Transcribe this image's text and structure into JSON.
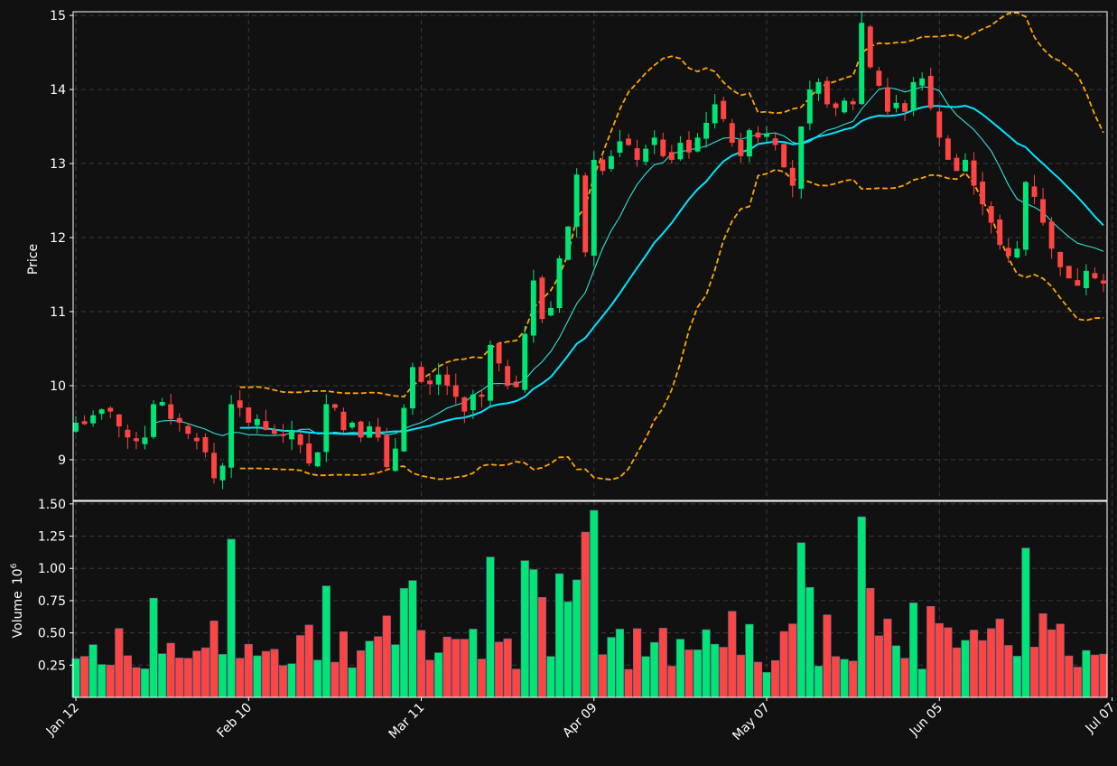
{
  "chart_data": {
    "type": "candlestick",
    "colors": {
      "background": "#111111",
      "up": "#00e676",
      "down": "#ff4444",
      "ma_fast": "#33e0d8",
      "ma_slow": "#00e5ff",
      "bands": "#ffa500",
      "grid": "#3a3a3a",
      "axis": "#ffffff"
    },
    "price_panel": {
      "ylabel": "Price",
      "ylim": [
        8.45,
        15.05
      ],
      "yticks": [
        9,
        10,
        11,
        12,
        13,
        14,
        15
      ]
    },
    "volume_panel": {
      "ylabel": "Volume",
      "unit_exponent": "6",
      "ylim": [
        0,
        1.52
      ],
      "yticks": [
        "0.25",
        "0.50",
        "0.75",
        "1.00",
        "1.25",
        "1.50"
      ]
    },
    "x_ticks": [
      {
        "label": "Jan 12",
        "index": 0
      },
      {
        "label": "Feb 10",
        "index": 20
      },
      {
        "label": "Mar 11",
        "index": 40
      },
      {
        "label": "Apr 09",
        "index": 60
      },
      {
        "label": "May 07",
        "index": 80
      },
      {
        "label": "Jun 05",
        "index": 100
      },
      {
        "label": "Jul 07",
        "index": 120
      }
    ],
    "close": [
      9.5,
      9.48,
      9.6,
      9.68,
      9.65,
      9.45,
      9.3,
      9.25,
      9.3,
      9.75,
      9.78,
      9.55,
      9.5,
      9.35,
      9.25,
      9.1,
      8.75,
      8.92,
      9.75,
      9.7,
      9.5,
      9.55,
      9.4,
      9.35,
      9.32,
      9.4,
      9.2,
      8.95,
      9.1,
      9.75,
      9.7,
      9.4,
      9.5,
      9.3,
      9.45,
      9.3,
      8.9,
      9.15,
      9.7,
      10.25,
      10.05,
      10.02,
      10.15,
      10.0,
      9.85,
      9.65,
      9.88,
      9.85,
      10.55,
      10.3,
      10.0,
      9.98,
      10.7,
      11.42,
      10.9,
      11.05,
      11.72,
      12.15,
      12.85,
      11.8,
      13.05,
      12.9,
      13.1,
      13.3,
      13.25,
      13.05,
      13.2,
      13.35,
      13.1,
      13.05,
      13.28,
      13.15,
      13.35,
      13.55,
      13.8,
      13.6,
      13.28,
      13.1,
      13.45,
      13.35,
      13.4,
      13.25,
      12.95,
      12.7,
      13.5,
      14.0,
      14.1,
      13.8,
      13.75,
      13.85,
      13.8,
      14.9,
      14.3,
      14.05,
      13.7,
      13.82,
      13.7,
      14.1,
      14.15,
      13.75,
      13.35,
      13.05,
      12.9,
      13.05,
      12.7,
      12.45,
      12.2,
      11.9,
      11.75,
      11.85,
      12.75,
      12.55,
      12.2,
      11.85,
      11.6,
      11.45,
      11.35,
      11.55,
      11.45,
      11.38
    ]
  }
}
